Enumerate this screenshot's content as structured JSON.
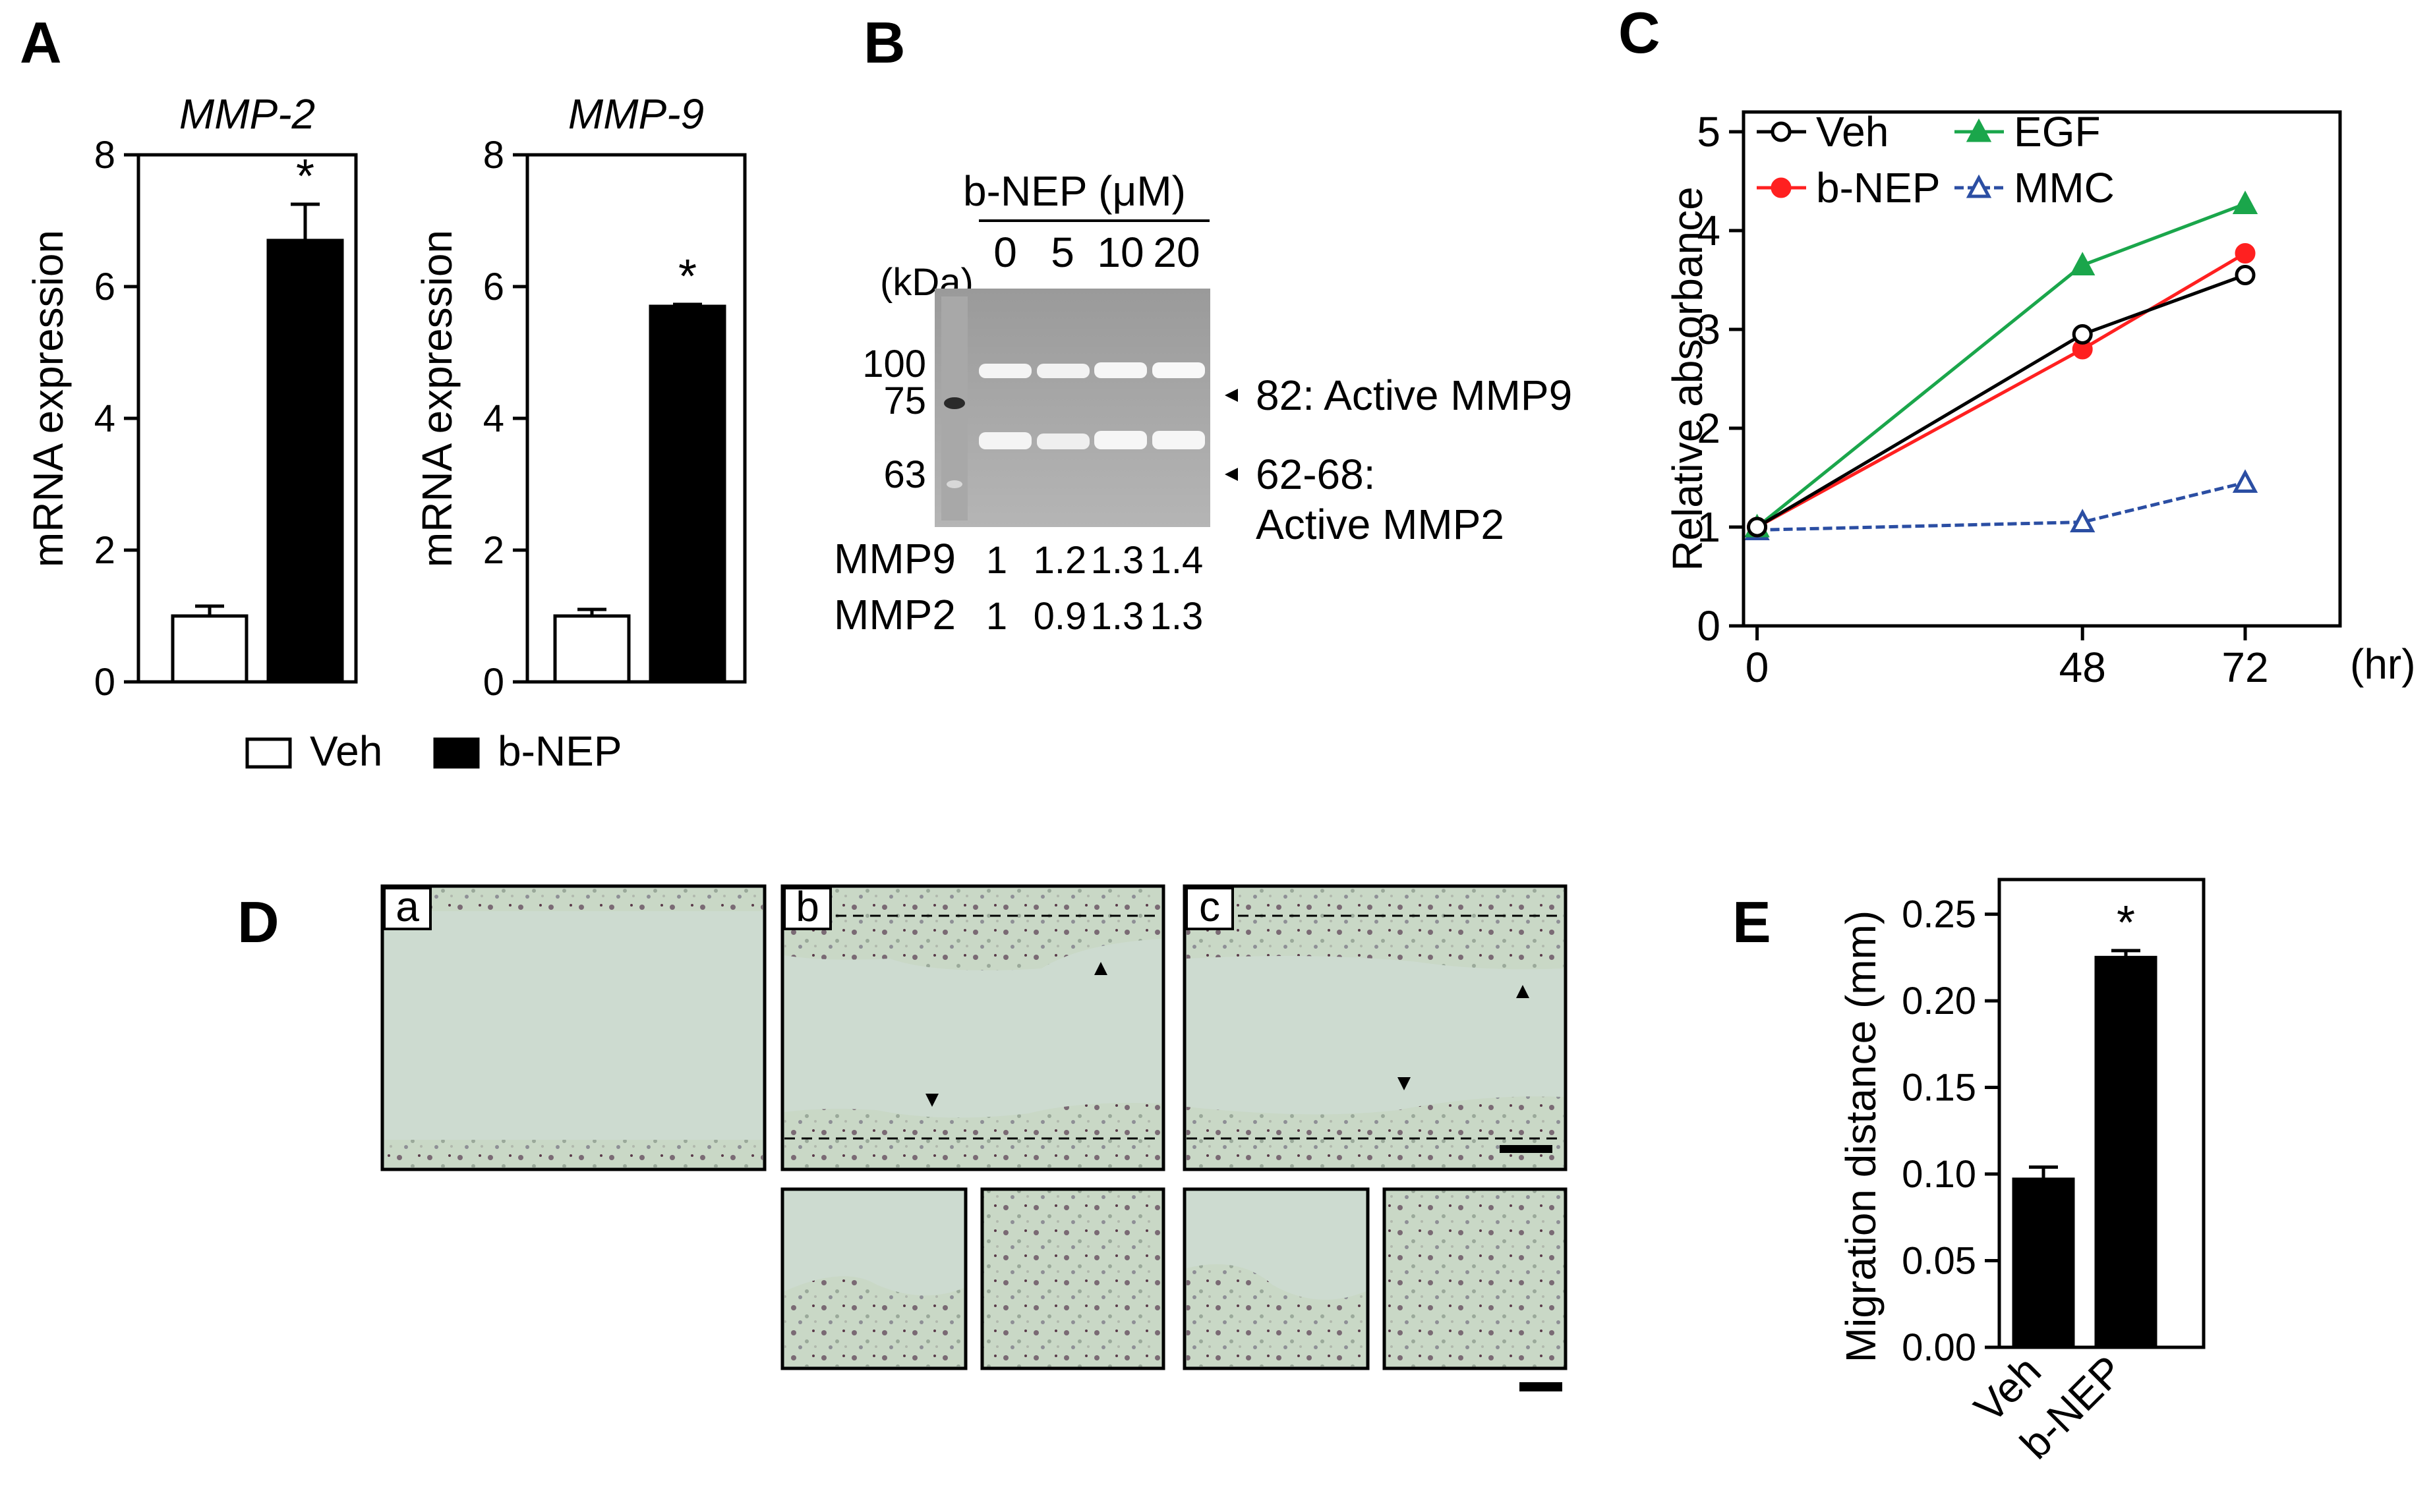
{
  "panels": {
    "A": {
      "letter": "A",
      "legend": [
        "Veh",
        "b-NEP"
      ],
      "star": "*"
    },
    "B": {
      "letter": "B",
      "header": "b-NEP (μM)",
      "doses": [
        "0",
        "5",
        "10",
        "20"
      ],
      "kda_label": "(kDa)",
      "markers": [
        "100",
        "75",
        "63"
      ],
      "band_labels": [
        "82: Active MMP9",
        "62-68:",
        "Active MMP2"
      ],
      "quant_rows": [
        {
          "name": "MMP9",
          "values": [
            "1",
            "1.2",
            "1.3",
            "1.4"
          ]
        },
        {
          "name": "MMP2",
          "values": [
            "1",
            "0.9",
            "1.3",
            "1.3"
          ]
        }
      ]
    },
    "C": {
      "letter": "C",
      "x_unit": "(hr)"
    },
    "D": {
      "letter": "D",
      "image_labels": [
        "a",
        "b",
        "c"
      ]
    },
    "E": {
      "letter": "E",
      "star": "*"
    }
  },
  "chart_data": [
    {
      "id": "A-left",
      "type": "bar",
      "title": "MMP-2",
      "ylabel": "mRNA expression",
      "categories": [
        "Veh",
        "b-NEP"
      ],
      "values": [
        1.0,
        6.7
      ],
      "errors": [
        0.15,
        0.55
      ],
      "ylim": [
        0,
        8
      ],
      "yticks": [
        "0",
        "2",
        "4",
        "6",
        "8"
      ],
      "colors": [
        "#ffffff",
        "#000000"
      ],
      "significant": [
        false,
        true
      ]
    },
    {
      "id": "A-right",
      "type": "bar",
      "title": "MMP-9",
      "ylabel": "mRNA expression",
      "categories": [
        "Veh",
        "b-NEP"
      ],
      "values": [
        1.0,
        5.7
      ],
      "errors": [
        0.1,
        0.03
      ],
      "ylim": [
        0,
        8
      ],
      "yticks": [
        "0",
        "2",
        "4",
        "6",
        "8"
      ],
      "colors": [
        "#ffffff",
        "#000000"
      ],
      "significant": [
        false,
        true
      ]
    },
    {
      "id": "C",
      "type": "line",
      "title": "",
      "ylabel": "Relative absorbance",
      "xlabel": "(hr)",
      "x": [
        0,
        48,
        72
      ],
      "xticks": [
        "0",
        "48",
        "72"
      ],
      "ylim": [
        0,
        5
      ],
      "yticks": [
        "0",
        "1",
        "2",
        "3",
        "4",
        "5"
      ],
      "series": [
        {
          "name": "Veh",
          "values": [
            1.0,
            2.95,
            3.55
          ],
          "color": "#000000",
          "marker": "open-circle",
          "dash": false
        },
        {
          "name": "b-NEP",
          "values": [
            1.0,
            2.8,
            3.77
          ],
          "color": "#ff2020",
          "marker": "filled-circle",
          "dash": false
        },
        {
          "name": "EGF",
          "values": [
            1.0,
            3.65,
            4.27
          ],
          "color": "#1aa64b",
          "marker": "filled-triangle",
          "dash": false
        },
        {
          "name": "MMC",
          "values": [
            0.97,
            1.05,
            1.45
          ],
          "color": "#2b4ea3",
          "marker": "open-triangle",
          "dash": true
        }
      ],
      "legend_order": [
        "Veh",
        "EGF",
        "b-NEP",
        "MMC"
      ],
      "legend": "top-left"
    },
    {
      "id": "E",
      "type": "bar",
      "title": "",
      "ylabel": "Migration distance (mm)",
      "categories": [
        "Veh",
        "b-NEP"
      ],
      "values": [
        0.097,
        0.225
      ],
      "errors": [
        0.007,
        0.004
      ],
      "ylim": [
        0,
        0.27
      ],
      "yticks": [
        "0.00",
        "0.05",
        "0.10",
        "0.15",
        "0.20",
        "0.25"
      ],
      "colors": [
        "#000000",
        "#000000"
      ],
      "significant": [
        false,
        true
      ]
    }
  ]
}
